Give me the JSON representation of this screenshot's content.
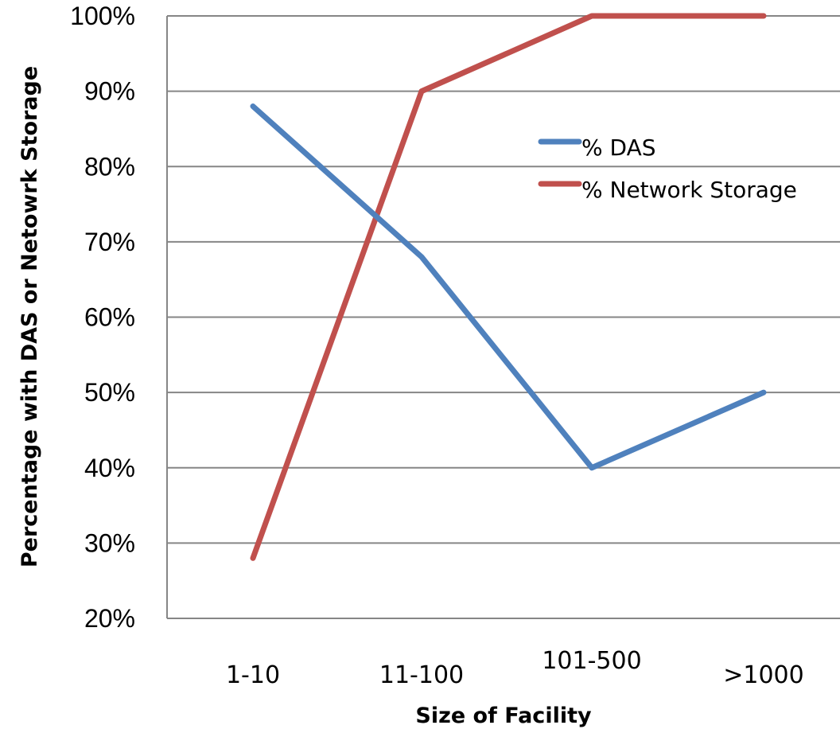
{
  "chart_data": {
    "type": "line",
    "categories": [
      "1-10",
      "11-100",
      "101-500",
      ">1000"
    ],
    "series": [
      {
        "name": "% DAS",
        "values": [
          88,
          68,
          40,
          50
        ],
        "color": "#4F81BD"
      },
      {
        "name": "% Network Storage",
        "values": [
          28,
          90,
          100,
          100
        ],
        "color": "#C0504D"
      }
    ],
    "xlabel": "Size of Facility",
    "ylabel": "Percentage with DAS or Netowrk Storage",
    "ylim": [
      20,
      100
    ],
    "yticks": [
      "20%",
      "30%",
      "40%",
      "50%",
      "60%",
      "70%",
      "80%",
      "90%",
      "100%"
    ],
    "grid": true,
    "legend_position": "center-right"
  }
}
